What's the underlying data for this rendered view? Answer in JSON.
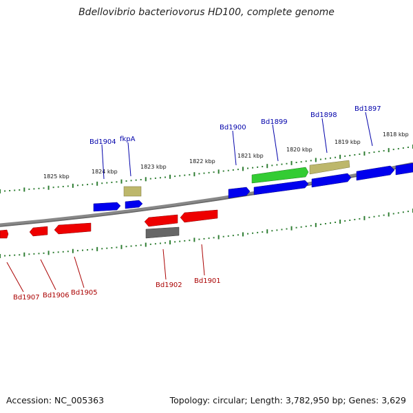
{
  "title": "Bdellovibrio bacteriovorus HD100, complete genome",
  "footer": {
    "accession": "Accession: NC_005363",
    "topology": "Topology: circular; Length: 3,782,950 bp; Genes: 3,629"
  },
  "colors": {
    "forward_gene": "#0000ff",
    "reverse_gene": "#ff0000",
    "highlight_gene": "#33cc33",
    "khaki_gene": "#bdb76b",
    "gray_gene": "#666666",
    "tick": "#2e7d32",
    "forward_label": "#0000aa",
    "reverse_label": "#aa0000",
    "backbone": "#888888"
  },
  "scale_labels": [
    "1825 kbp",
    "1824 kbp",
    "1823 kbp",
    "1822 kbp",
    "1821 kbp",
    "1820 kbp",
    "1819 kbp",
    "1818 kbp"
  ],
  "forward_gene_labels": [
    "Bd1904",
    "fkpA",
    "Bd1900",
    "Bd1899",
    "Bd1898",
    "Bd1897"
  ],
  "reverse_gene_labels": [
    "Bd1907",
    "Bd1906",
    "Bd1905",
    "Bd1902",
    "Bd1901"
  ]
}
